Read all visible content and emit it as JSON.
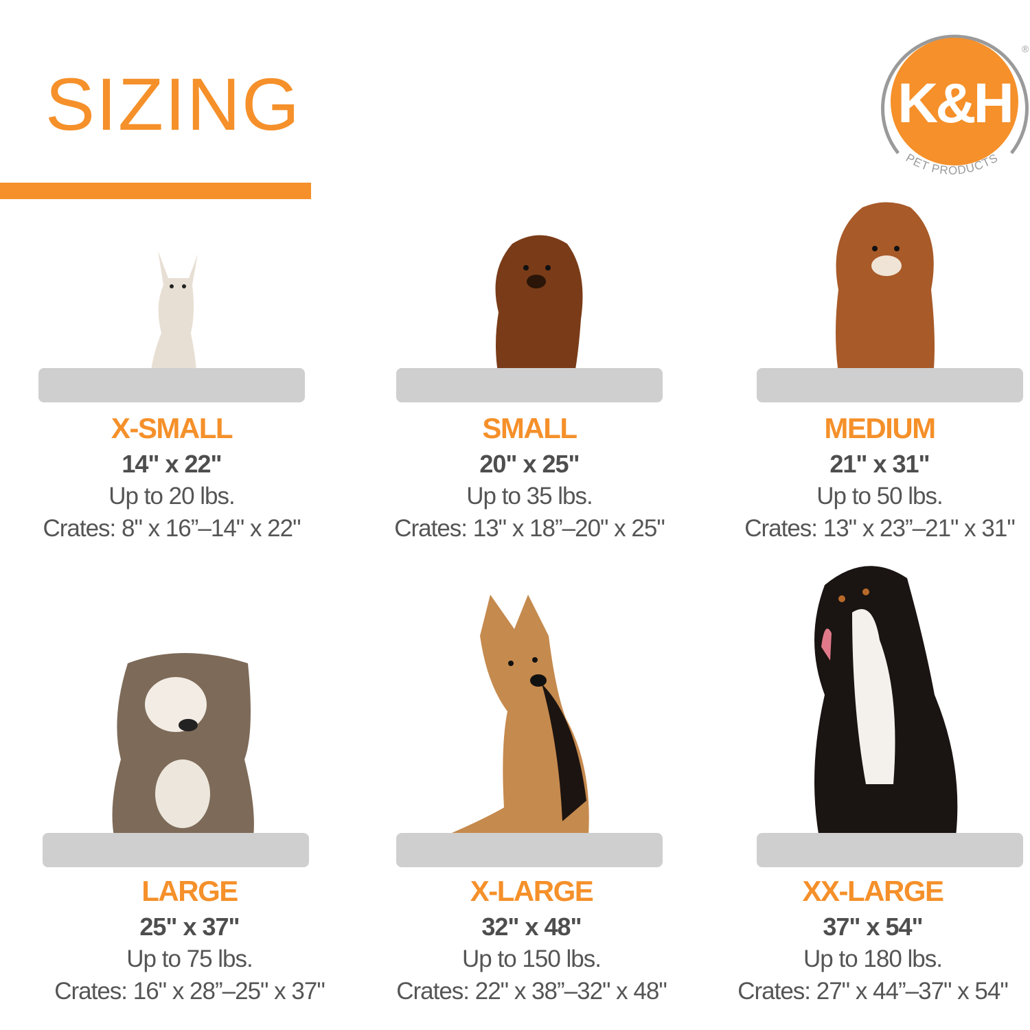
{
  "header": {
    "title": "SIZING"
  },
  "logo": {
    "text": "K&H",
    "subtext": "PET PRODUCTS",
    "registered": "®"
  },
  "colors": {
    "accent": "#f5902a",
    "text": "#555555",
    "pad": "#cfcfcf",
    "logo_ring": "#9a9a9a"
  },
  "sizes": [
    {
      "label": "X-SMALL",
      "dimensions": "14\" x 22\"",
      "weight": "Up to 20 lbs.",
      "crates": "Crates: 8\" x 16”–14\" x 22\"",
      "dog": "chihuahua"
    },
    {
      "label": "SMALL",
      "dimensions": "20\" x 25\"",
      "weight": "Up to 35 lbs.",
      "crates": "Crates: 13\" x 18”–20\" x 25\"",
      "dog": "dachshund"
    },
    {
      "label": "MEDIUM",
      "dimensions": "21\" x 31\"",
      "weight": "Up to 50 lbs.",
      "crates": "Crates: 13\" x 23”–21\" x 31\"",
      "dog": "cavalier-spaniel"
    },
    {
      "label": "LARGE",
      "dimensions": "25\" x 37\"",
      "weight": "Up to 75 lbs.",
      "crates": "Crates: 16\" x 28”–25\" x 37\"",
      "dog": "bulldog"
    },
    {
      "label": "X-LARGE",
      "dimensions": "32\" x 48\"",
      "weight": "Up to 150 lbs.",
      "crates": "Crates: 22\" x 38”–32\" x 48\"",
      "dog": "german-shepherd"
    },
    {
      "label": "XX-LARGE",
      "dimensions": "37\" x 54\"",
      "weight": "Up to 180 lbs.",
      "crates": "Crates: 27\" x 44”–37\" x 54\"",
      "dog": "bernese-mountain-dog"
    }
  ]
}
